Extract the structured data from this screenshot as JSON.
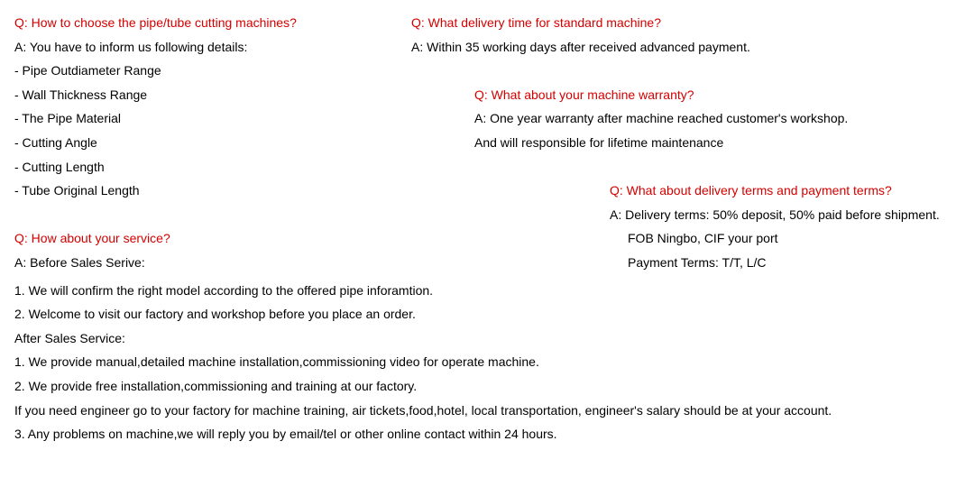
{
  "faq": {
    "q1": {
      "question": "Q: How to choose the pipe/tube cutting machines?",
      "a_lead": "A: You have to inform us following details:",
      "items": [
        "- Pipe Outdiameter Range",
        "- Wall Thickness Range",
        "- The Pipe Material",
        "- Cutting Angle",
        "- Cutting Length",
        "- Tube Original Length"
      ]
    },
    "q2": {
      "question": "Q: What delivery time for standard machine?",
      "answer": "A: Within 35 working days after received advanced payment."
    },
    "q3": {
      "question": "Q: What about your machine warranty?",
      "a1": "A: One year warranty after machine reached customer's workshop.",
      "a2": "And will responsible for lifetime maintenance"
    },
    "q4": {
      "question": "Q: What about delivery terms and payment terms?",
      "a1": "A: Delivery terms: 50% deposit, 50% paid before shipment.",
      "a2": "FOB Ningbo, CIF your port",
      "a3": "Payment Terms: T/T, L/C"
    },
    "q5": {
      "question": "Q: How about your service?",
      "before_label": "A: Before Sales Serive:",
      "before_1": "1. We will confirm the right model according to the offered pipe inforamtion.",
      "before_2": "2. Welcome to visit our factory and workshop before you place an order.",
      "after_label": "After Sales Service:",
      "after_1": "1. We provide manual,detailed machine installation,commissioning video for operate machine.",
      "after_2": "2. We provide free installation,commissioning and training at our factory.",
      "after_note": "If you need engineer go to your factory for machine training, air tickets,food,hotel, local transportation, engineer's salary should be at your account.",
      "after_3": "3. Any problems on machine,we will reply you by email/tel or other online contact within 24 hours."
    }
  }
}
